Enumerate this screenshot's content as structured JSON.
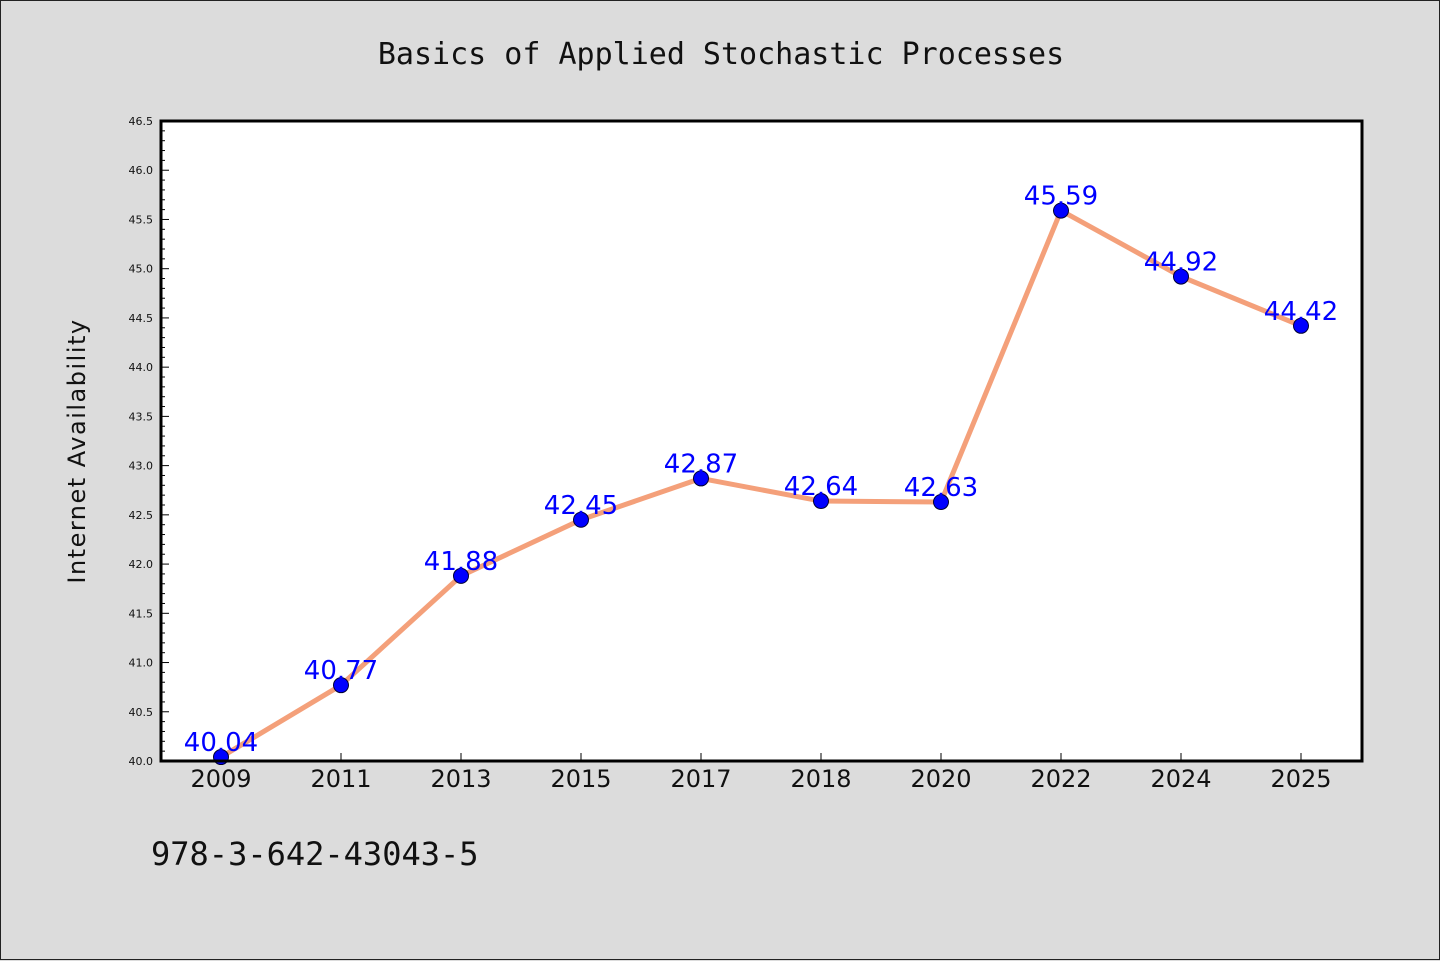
{
  "isbn": "978-3-642-43043-5",
  "colors": {
    "background": "#dcdcdc",
    "plot_background": "#ffffff",
    "line": "#f4a07a",
    "marker": "#0000ff",
    "data_label": "#0000ff"
  },
  "chart_data": {
    "type": "line",
    "title": "Basics of Applied Stochastic Processes",
    "xlabel": "",
    "ylabel": "Internet Availability",
    "categories": [
      "2009",
      "2011",
      "2013",
      "2015",
      "2017",
      "2018",
      "2020",
      "2022",
      "2024",
      "2025"
    ],
    "series": [
      {
        "values": [
          40.04,
          40.77,
          41.88,
          42.45,
          42.87,
          42.64,
          42.63,
          45.59,
          44.92,
          44.42
        ],
        "labels": [
          "40.04",
          "40.77",
          "41.88",
          "42.45",
          "42.87",
          "42.64",
          "42.63",
          "45.59",
          "44.92",
          "44.42"
        ]
      }
    ],
    "ylim": [
      40.0,
      46.5
    ],
    "yticks": [
      "40.0",
      "40.5",
      "41.0",
      "41.5",
      "42.0",
      "42.5",
      "43.0",
      "43.5",
      "44.0",
      "44.5",
      "45.0",
      "45.5",
      "46.0",
      "46.5"
    ],
    "yminor_step": 0.1,
    "grid": false,
    "legend": "none",
    "marker": "circle"
  }
}
